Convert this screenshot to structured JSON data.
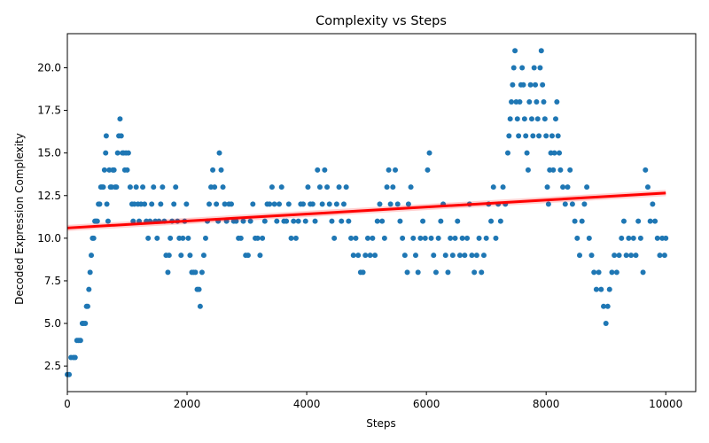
{
  "chart_data": {
    "type": "scatter",
    "title": "Complexity vs Steps",
    "xlabel": "Steps",
    "ylabel": "Decoded Expression Complexity",
    "xlim": [
      0,
      10500
    ],
    "ylim": [
      1,
      22
    ],
    "x_ticks": [
      0,
      2000,
      4000,
      6000,
      8000,
      10000
    ],
    "y_ticks": [
      2.5,
      5.0,
      7.5,
      10.0,
      12.5,
      15.0,
      17.5,
      20.0
    ],
    "y_tick_labels": [
      "2.5",
      "5.0",
      "7.5",
      "10.0",
      "12.5",
      "15.0",
      "17.5",
      "20.0"
    ],
    "x_tick_labels": [
      "0",
      "2000",
      "4000",
      "6000",
      "8000",
      "10000"
    ],
    "grid": false,
    "series": [
      {
        "kind": "points",
        "color": "#1f77b4",
        "points": [
          [
            0,
            2
          ],
          [
            30,
            2
          ],
          [
            60,
            3
          ],
          [
            100,
            3
          ],
          [
            130,
            3
          ],
          [
            160,
            4
          ],
          [
            190,
            4
          ],
          [
            220,
            4
          ],
          [
            250,
            5
          ],
          [
            270,
            5
          ],
          [
            300,
            5
          ],
          [
            320,
            6
          ],
          [
            340,
            6
          ],
          [
            360,
            7
          ],
          [
            380,
            8
          ],
          [
            400,
            9
          ],
          [
            420,
            10
          ],
          [
            440,
            10
          ],
          [
            460,
            11
          ],
          [
            480,
            11
          ],
          [
            500,
            11
          ],
          [
            520,
            12
          ],
          [
            540,
            12
          ],
          [
            560,
            13
          ],
          [
            580,
            13
          ],
          [
            600,
            13
          ],
          [
            620,
            14
          ],
          [
            640,
            15
          ],
          [
            650,
            16
          ],
          [
            660,
            12
          ],
          [
            680,
            11
          ],
          [
            700,
            14
          ],
          [
            720,
            13
          ],
          [
            740,
            13
          ],
          [
            760,
            14
          ],
          [
            780,
            14
          ],
          [
            800,
            13
          ],
          [
            820,
            13
          ],
          [
            840,
            15
          ],
          [
            860,
            16
          ],
          [
            880,
            17
          ],
          [
            900,
            16
          ],
          [
            920,
            15
          ],
          [
            940,
            15
          ],
          [
            960,
            14
          ],
          [
            980,
            15
          ],
          [
            1000,
            14
          ],
          [
            1020,
            15
          ],
          [
            1050,
            13
          ],
          [
            1080,
            12
          ],
          [
            1100,
            11
          ],
          [
            1120,
            12
          ],
          [
            1150,
            13
          ],
          [
            1180,
            12
          ],
          [
            1200,
            11
          ],
          [
            1230,
            12
          ],
          [
            1260,
            13
          ],
          [
            1290,
            12
          ],
          [
            1320,
            11
          ],
          [
            1350,
            10
          ],
          [
            1380,
            11
          ],
          [
            1410,
            12
          ],
          [
            1440,
            13
          ],
          [
            1470,
            11
          ],
          [
            1500,
            10
          ],
          [
            1530,
            11
          ],
          [
            1560,
            12
          ],
          [
            1590,
            13
          ],
          [
            1620,
            11
          ],
          [
            1650,
            9
          ],
          [
            1680,
            8
          ],
          [
            1700,
            9
          ],
          [
            1720,
            10
          ],
          [
            1750,
            11
          ],
          [
            1780,
            12
          ],
          [
            1810,
            13
          ],
          [
            1840,
            11
          ],
          [
            1870,
            10
          ],
          [
            1900,
            9
          ],
          [
            1930,
            10
          ],
          [
            1960,
            11
          ],
          [
            1990,
            12
          ],
          [
            2020,
            10
          ],
          [
            2050,
            9
          ],
          [
            2080,
            8
          ],
          [
            2110,
            8
          ],
          [
            2140,
            8
          ],
          [
            2170,
            7
          ],
          [
            2200,
            7
          ],
          [
            2220,
            6
          ],
          [
            2250,
            8
          ],
          [
            2280,
            9
          ],
          [
            2310,
            10
          ],
          [
            2340,
            11
          ],
          [
            2370,
            12
          ],
          [
            2400,
            13
          ],
          [
            2430,
            14
          ],
          [
            2460,
            13
          ],
          [
            2490,
            12
          ],
          [
            2520,
            11
          ],
          [
            2540,
            15
          ],
          [
            2570,
            14
          ],
          [
            2600,
            13
          ],
          [
            2630,
            12
          ],
          [
            2660,
            11
          ],
          [
            2700,
            12
          ],
          [
            2740,
            12
          ],
          [
            2780,
            11
          ],
          [
            2820,
            11
          ],
          [
            2860,
            10
          ],
          [
            2900,
            10
          ],
          [
            2940,
            11
          ],
          [
            2980,
            9
          ],
          [
            3020,
            9
          ],
          [
            3060,
            11
          ],
          [
            3100,
            12
          ],
          [
            3140,
            10
          ],
          [
            3180,
            10
          ],
          [
            3220,
            9
          ],
          [
            3260,
            10
          ],
          [
            3300,
            11
          ],
          [
            3340,
            12
          ],
          [
            3380,
            12
          ],
          [
            3420,
            13
          ],
          [
            3460,
            12
          ],
          [
            3500,
            11
          ],
          [
            3540,
            12
          ],
          [
            3580,
            13
          ],
          [
            3620,
            11
          ],
          [
            3660,
            11
          ],
          [
            3700,
            12
          ],
          [
            3740,
            10
          ],
          [
            3780,
            11
          ],
          [
            3820,
            10
          ],
          [
            3860,
            11
          ],
          [
            3900,
            12
          ],
          [
            3940,
            12
          ],
          [
            3980,
            11
          ],
          [
            4020,
            13
          ],
          [
            4060,
            12
          ],
          [
            4100,
            12
          ],
          [
            4140,
            11
          ],
          [
            4180,
            14
          ],
          [
            4220,
            13
          ],
          [
            4260,
            12
          ],
          [
            4300,
            14
          ],
          [
            4340,
            13
          ],
          [
            4380,
            12
          ],
          [
            4420,
            11
          ],
          [
            4460,
            10
          ],
          [
            4500,
            12
          ],
          [
            4540,
            13
          ],
          [
            4580,
            11
          ],
          [
            4620,
            12
          ],
          [
            4660,
            13
          ],
          [
            4700,
            11
          ],
          [
            4740,
            10
          ],
          [
            4780,
            9
          ],
          [
            4820,
            10
          ],
          [
            4860,
            9
          ],
          [
            4900,
            8
          ],
          [
            4940,
            8
          ],
          [
            4980,
            9
          ],
          [
            5020,
            10
          ],
          [
            5060,
            9
          ],
          [
            5100,
            10
          ],
          [
            5140,
            9
          ],
          [
            5180,
            11
          ],
          [
            5220,
            12
          ],
          [
            5260,
            11
          ],
          [
            5300,
            10
          ],
          [
            5340,
            13
          ],
          [
            5370,
            14
          ],
          [
            5400,
            12
          ],
          [
            5440,
            13
          ],
          [
            5480,
            14
          ],
          [
            5520,
            12
          ],
          [
            5560,
            11
          ],
          [
            5600,
            10
          ],
          [
            5640,
            9
          ],
          [
            5680,
            8
          ],
          [
            5700,
            12
          ],
          [
            5740,
            13
          ],
          [
            5780,
            10
          ],
          [
            5820,
            9
          ],
          [
            5860,
            8
          ],
          [
            5900,
            10
          ],
          [
            5940,
            11
          ],
          [
            5980,
            10
          ],
          [
            6020,
            14
          ],
          [
            6050,
            15
          ],
          [
            6080,
            10
          ],
          [
            6120,
            9
          ],
          [
            6160,
            8
          ],
          [
            6200,
            10
          ],
          [
            6240,
            11
          ],
          [
            6280,
            12
          ],
          [
            6320,
            9
          ],
          [
            6360,
            8
          ],
          [
            6400,
            10
          ],
          [
            6440,
            9
          ],
          [
            6480,
            10
          ],
          [
            6520,
            11
          ],
          [
            6560,
            9
          ],
          [
            6600,
            10
          ],
          [
            6640,
            9
          ],
          [
            6680,
            10
          ],
          [
            6720,
            12
          ],
          [
            6760,
            9
          ],
          [
            6800,
            8
          ],
          [
            6840,
            9
          ],
          [
            6880,
            10
          ],
          [
            6920,
            8
          ],
          [
            6960,
            9
          ],
          [
            7000,
            10
          ],
          [
            7040,
            12
          ],
          [
            7080,
            11
          ],
          [
            7120,
            13
          ],
          [
            7160,
            10
          ],
          [
            7200,
            12
          ],
          [
            7240,
            11
          ],
          [
            7280,
            13
          ],
          [
            7320,
            12
          ],
          [
            7360,
            15
          ],
          [
            7380,
            16
          ],
          [
            7400,
            17
          ],
          [
            7420,
            18
          ],
          [
            7440,
            19
          ],
          [
            7460,
            20
          ],
          [
            7480,
            21
          ],
          [
            7500,
            18
          ],
          [
            7520,
            17
          ],
          [
            7540,
            16
          ],
          [
            7560,
            18
          ],
          [
            7580,
            19
          ],
          [
            7600,
            20
          ],
          [
            7620,
            19
          ],
          [
            7640,
            17
          ],
          [
            7660,
            16
          ],
          [
            7680,
            15
          ],
          [
            7700,
            14
          ],
          [
            7720,
            18
          ],
          [
            7740,
            19
          ],
          [
            7760,
            17
          ],
          [
            7780,
            16
          ],
          [
            7800,
            20
          ],
          [
            7820,
            19
          ],
          [
            7840,
            18
          ],
          [
            7860,
            17
          ],
          [
            7880,
            16
          ],
          [
            7900,
            20
          ],
          [
            7920,
            21
          ],
          [
            7940,
            19
          ],
          [
            7960,
            18
          ],
          [
            7980,
            17
          ],
          [
            8000,
            16
          ],
          [
            8020,
            13
          ],
          [
            8040,
            12
          ],
          [
            8060,
            14
          ],
          [
            8080,
            15
          ],
          [
            8100,
            16
          ],
          [
            8120,
            14
          ],
          [
            8140,
            15
          ],
          [
            8160,
            17
          ],
          [
            8180,
            18
          ],
          [
            8200,
            16
          ],
          [
            8220,
            15
          ],
          [
            8240,
            14
          ],
          [
            8280,
            13
          ],
          [
            8320,
            12
          ],
          [
            8360,
            13
          ],
          [
            8400,
            14
          ],
          [
            8440,
            12
          ],
          [
            8480,
            11
          ],
          [
            8520,
            10
          ],
          [
            8560,
            9
          ],
          [
            8600,
            11
          ],
          [
            8640,
            12
          ],
          [
            8680,
            13
          ],
          [
            8720,
            10
          ],
          [
            8760,
            9
          ],
          [
            8800,
            8
          ],
          [
            8840,
            7
          ],
          [
            8880,
            8
          ],
          [
            8920,
            7
          ],
          [
            8960,
            6
          ],
          [
            9000,
            5
          ],
          [
            9030,
            6
          ],
          [
            9060,
            7
          ],
          [
            9100,
            8
          ],
          [
            9140,
            9
          ],
          [
            9180,
            8
          ],
          [
            9220,
            9
          ],
          [
            9260,
            10
          ],
          [
            9300,
            11
          ],
          [
            9340,
            9
          ],
          [
            9380,
            10
          ],
          [
            9420,
            9
          ],
          [
            9460,
            10
          ],
          [
            9500,
            9
          ],
          [
            9540,
            11
          ],
          [
            9580,
            10
          ],
          [
            9620,
            8
          ],
          [
            9660,
            14
          ],
          [
            9700,
            13
          ],
          [
            9740,
            11
          ],
          [
            9780,
            12
          ],
          [
            9820,
            11
          ],
          [
            9860,
            10
          ],
          [
            9900,
            9
          ],
          [
            9940,
            10
          ],
          [
            9980,
            9
          ],
          [
            10000,
            10
          ]
        ]
      },
      {
        "kind": "trend",
        "color": "#ff0000",
        "x": [
          0,
          10000
        ],
        "y": [
          10.6,
          12.65
        ]
      }
    ]
  }
}
